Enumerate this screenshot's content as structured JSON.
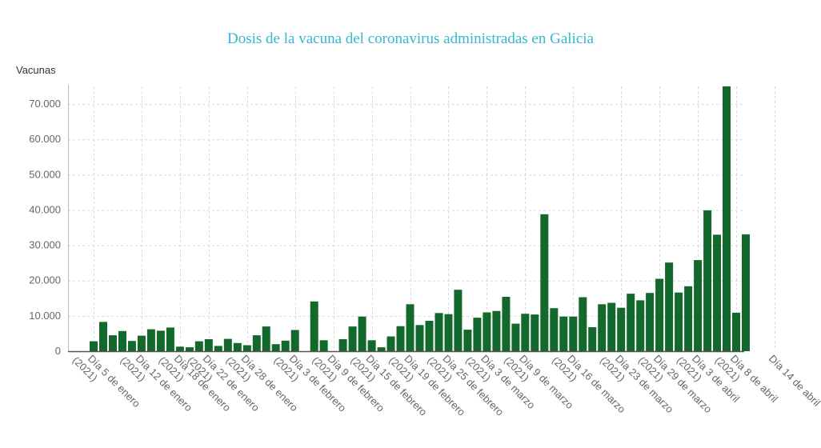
{
  "chart_data": {
    "type": "bar",
    "title": "Dosis de la vacuna del coronavirus administradas en Galicia",
    "ylabel": "Vacunas",
    "xlabel": "",
    "ylim": [
      0,
      75000
    ],
    "yticks": [
      "0",
      "10.000",
      "20.000",
      "30.000",
      "40.000",
      "50.000",
      "60.000",
      "70.000"
    ],
    "tick_labels": [
      {
        "line1": "Día 5 de enero",
        "line2": "(2021)",
        "index": 0
      },
      {
        "line1": "Día 12 de enero",
        "line2": "(2021)",
        "index": 5
      },
      {
        "line1": "Día 18 de enero",
        "line2": "(2021)",
        "index": 9
      },
      {
        "line1": "Día 22 de enero",
        "line2": "(2021)",
        "index": 12
      },
      {
        "line1": "Día 28 de enero",
        "line2": "(2021)",
        "index": 16
      },
      {
        "line1": "Día 3 de febrero",
        "line2": "(2021)",
        "index": 21
      },
      {
        "line1": "Día 9 de febrero",
        "line2": "(2021)",
        "index": 25
      },
      {
        "line1": "Día 15 de febrero",
        "line2": "(2021)",
        "index": 29
      },
      {
        "line1": "Día 19 de febrero",
        "line2": "(2021)",
        "index": 33
      },
      {
        "line1": "Día 25 de febrero",
        "line2": "(2021)",
        "index": 37
      },
      {
        "line1": "Día 3 de marzo",
        "line2": "(2021)",
        "index": 41
      },
      {
        "line1": "Día 9 de marzo",
        "line2": "(2021)",
        "index": 45
      },
      {
        "line1": "Día 16 de marzo",
        "line2": "(2021)",
        "index": 50
      },
      {
        "line1": "Día 23 de marzo",
        "line2": "(2021)",
        "index": 55
      },
      {
        "line1": "Día 29 de marzo",
        "line2": "(2021)",
        "index": 59
      },
      {
        "line1": "Día 3 de abril",
        "line2": "(2021)",
        "index": 63
      },
      {
        "line1": "Día 8 de abril",
        "line2": "(2021)",
        "index": 67
      },
      {
        "line1": "Día 14 de abril",
        "line2": "",
        "index": 71
      }
    ],
    "values": [
      2800,
      8300,
      4500,
      5700,
      2900,
      4400,
      6200,
      5800,
      6700,
      1300,
      1100,
      2800,
      3400,
      1500,
      3500,
      2300,
      1700,
      4500,
      7000,
      2000,
      3000,
      6000,
      0,
      14100,
      3100,
      0,
      3400,
      7000,
      9800,
      3100,
      1100,
      4200,
      7100,
      13300,
      7400,
      8600,
      10800,
      10500,
      17400,
      6100,
      9500,
      11000,
      11400,
      15400,
      7800,
      10600,
      10400,
      38800,
      12200,
      9800,
      9800,
      15300,
      6800,
      13300,
      13700,
      12300,
      16300,
      14400,
      16500,
      20500,
      25100,
      16600,
      18400,
      25800,
      39900,
      33000,
      75000,
      10900,
      33100
    ],
    "bar_color": "#13692b",
    "grid": true
  }
}
